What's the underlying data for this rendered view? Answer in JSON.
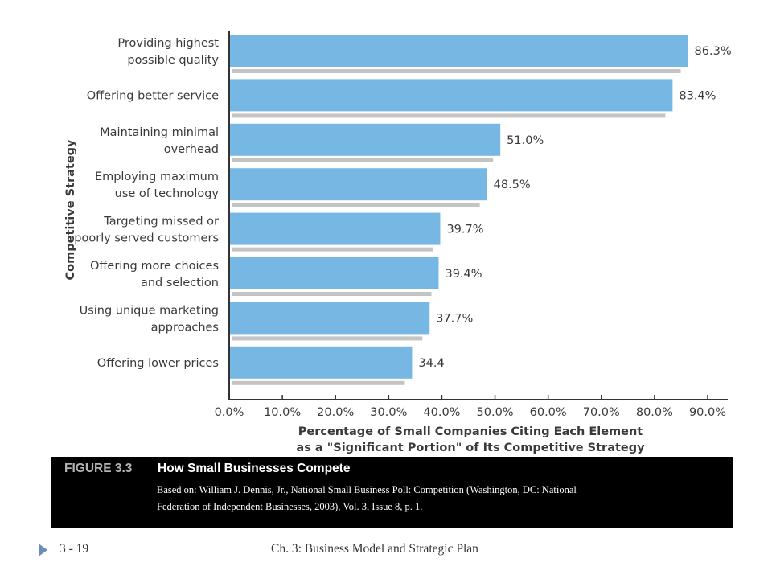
{
  "chart_data": {
    "type": "bar",
    "orientation": "horizontal",
    "categories": [
      [
        "Providing highest",
        "possible quality"
      ],
      [
        "Offering better service"
      ],
      [
        "Maintaining minimal",
        "overhead"
      ],
      [
        "Employing maximum",
        "use of technology"
      ],
      [
        "Targeting missed or",
        "poorly served customers"
      ],
      [
        "Offering more choices",
        "and selection"
      ],
      [
        "Using unique marketing",
        "approaches"
      ],
      [
        "Offering lower prices"
      ]
    ],
    "values": [
      86.3,
      83.4,
      51.0,
      48.5,
      39.7,
      39.4,
      37.7,
      34.4
    ],
    "value_labels": [
      "86.3%",
      "83.4%",
      "51.0%",
      "48.5%",
      "39.7%",
      "39.4%",
      "37.7%",
      "34.4"
    ],
    "xlim": [
      0,
      90
    ],
    "x_ticks": [
      "0.0%",
      "10.0%",
      "20.0%",
      "30.0%",
      "40.0%",
      "50.0%",
      "60.0%",
      "70.0%",
      "80.0%",
      "90.0%"
    ],
    "xlabel": [
      "Percentage of Small Companies Citing Each Element",
      "as a \"Significant Portion\" of Its Competitive Strategy"
    ],
    "ylabel": "Competitive Strategy",
    "grid": false,
    "colors": {
      "bar": "#77b7e4",
      "bar_shadow": "#c4c4c4",
      "axis": "#333333"
    }
  },
  "caption": {
    "figure_number": "FIGURE 3.3",
    "title": "How Small Businesses Compete",
    "source_line1": "Based on: William J. Dennis, Jr., National Small Business Poll: Competition (Washington, DC: National",
    "source_line2": "Federation of  Independent Businesses, 2003), Vol. 3, Issue 8, p. 1."
  },
  "footer": {
    "page": "3 - 19",
    "title": "Ch. 3: Business Model and Strategic Plan"
  }
}
